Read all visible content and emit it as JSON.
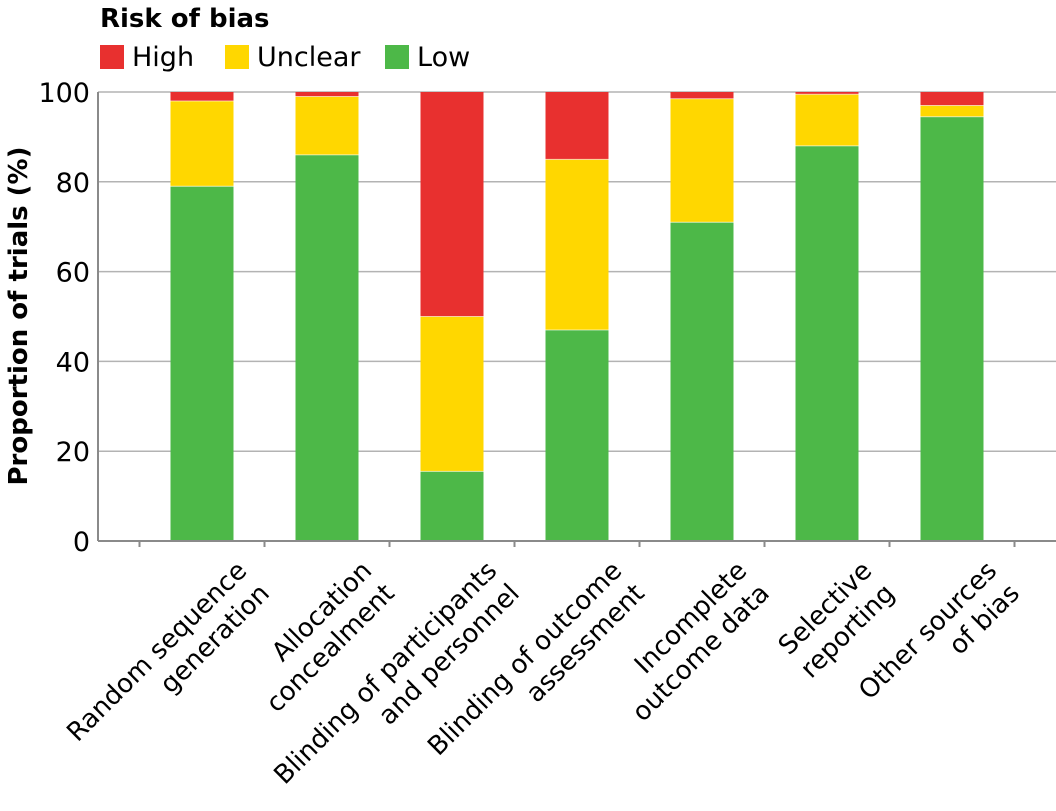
{
  "chart_data": {
    "type": "bar",
    "stacked": true,
    "legend_title": "Risk of bias",
    "legend_position": "top-left",
    "ylabel": "Proportion of trials (%)",
    "xlabel": "",
    "ylim": [
      0,
      100
    ],
    "yticks": [
      0,
      20,
      40,
      60,
      80,
      100
    ],
    "grid": true,
    "categories": [
      [
        "Random sequence",
        "generation"
      ],
      [
        "Allocation",
        "concealment"
      ],
      [
        "Blinding of participants",
        "and personnel"
      ],
      [
        "Blinding of outcome",
        "assessment"
      ],
      [
        "Incomplete",
        "outcome data"
      ],
      [
        "Selective",
        "reporting"
      ],
      [
        "Other sources",
        "of bias"
      ]
    ],
    "series": [
      {
        "name": "Low",
        "color": "#4db848",
        "values": [
          79,
          86,
          15.5,
          47,
          71,
          88,
          94.5
        ]
      },
      {
        "name": "Unclear",
        "color": "#ffd700",
        "values": [
          19,
          13,
          34.5,
          38,
          27.5,
          11.5,
          2.5
        ]
      },
      {
        "name": "High",
        "color": "#e8302f",
        "values": [
          2,
          1,
          50,
          15,
          1.5,
          0.5,
          3
        ]
      }
    ],
    "legend_order": [
      "High",
      "Unclear",
      "Low"
    ]
  }
}
